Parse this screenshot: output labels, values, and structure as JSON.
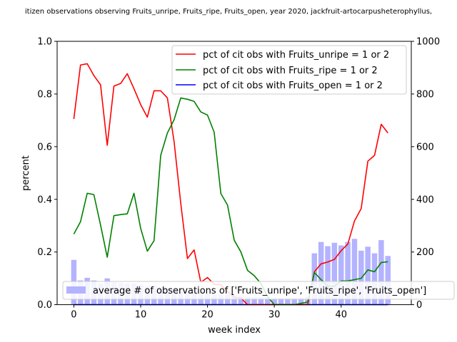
{
  "chart_data": {
    "type": "line",
    "title": "itizen observations observing Fruits_unripe, Fruits_ripe, Fruits_open, year 2020, jackfruit-artocarpusheterophyllus,",
    "xlabel": "week index",
    "ylabel": "percent",
    "xlim": [
      -2.5,
      50.5
    ],
    "ylim": [
      0,
      1.0
    ],
    "y2lim": [
      0,
      1000
    ],
    "xticks": [
      0,
      10,
      20,
      30,
      40
    ],
    "yticks": [
      0.0,
      0.2,
      0.4,
      0.6,
      0.8,
      1.0
    ],
    "yticks_labels": [
      "0.0",
      "0.2",
      "0.4",
      "0.6",
      "0.8",
      "1.0"
    ],
    "y2ticks": [
      0,
      200,
      400,
      600,
      800,
      1000
    ],
    "x": [
      0,
      1,
      2,
      3,
      4,
      5,
      6,
      7,
      8,
      9,
      10,
      11,
      12,
      13,
      14,
      15,
      16,
      17,
      18,
      19,
      20,
      21,
      22,
      23,
      24,
      25,
      26,
      27,
      28,
      29,
      30,
      31,
      32,
      33,
      34,
      35,
      36,
      37,
      38,
      39,
      40,
      41,
      42,
      43,
      44,
      45,
      46,
      47
    ],
    "series": [
      {
        "name": "pct of cit obs with Fruits_unripe = 1 or 2",
        "color": "#ff0000",
        "values": [
          0.705,
          0.91,
          0.915,
          0.87,
          0.835,
          0.605,
          0.83,
          0.84,
          0.877,
          0.82,
          0.76,
          0.712,
          0.812,
          0.812,
          0.785,
          0.62,
          0.385,
          0.175,
          0.208,
          0.085,
          0.103,
          0.078,
          0.075,
          0.05,
          0.028,
          0.025,
          0.0,
          0.0,
          0.0,
          0.0,
          0.0,
          0.0,
          0.0,
          0.0,
          0.0,
          0.0,
          0.125,
          0.155,
          0.162,
          0.172,
          0.205,
          0.23,
          0.318,
          0.365,
          0.545,
          0.567,
          0.685,
          0.652
        ]
      },
      {
        "name": "pct of cit obs with Fruits_ripe = 1 or 2",
        "color": "#008000",
        "values": [
          0.268,
          0.315,
          0.423,
          0.418,
          0.302,
          0.18,
          0.338,
          0.342,
          0.345,
          0.423,
          0.29,
          0.203,
          0.243,
          0.567,
          0.652,
          0.702,
          0.785,
          0.78,
          0.772,
          0.732,
          0.72,
          0.655,
          0.422,
          0.378,
          0.245,
          0.2,
          0.13,
          0.11,
          0.08,
          0.03,
          0.0,
          0.0,
          0.0,
          0.0,
          0.005,
          0.01,
          0.122,
          0.095,
          0.07,
          0.07,
          0.09,
          0.09,
          0.095,
          0.1,
          0.132,
          0.125,
          0.16,
          0.163
        ]
      },
      {
        "name": "pct of cit obs with Fruits_open = 1 or 2",
        "color": "#0000ff",
        "values": [
          0,
          0,
          0,
          0,
          0,
          0,
          0,
          0,
          0,
          0,
          0,
          0,
          0,
          0,
          0,
          0,
          0,
          0,
          0,
          0,
          0,
          0,
          0,
          0,
          0,
          0,
          0,
          0,
          0,
          0,
          0,
          0,
          0,
          0,
          0,
          0,
          0,
          0,
          0,
          0,
          0,
          0,
          0,
          0,
          0,
          0,
          0,
          0
        ]
      }
    ],
    "bars": {
      "name": "average # of observations of ['Fruits_unripe', 'Fruits_ripe', 'Fruits_open']",
      "color": "#b3b3ff",
      "values": [
        170,
        92,
        102,
        92,
        80,
        100,
        85,
        82,
        80,
        80,
        75,
        70,
        72,
        68,
        65,
        60,
        55,
        50,
        48,
        45,
        42,
        40,
        40,
        38,
        36,
        35,
        30,
        28,
        28,
        28,
        25,
        25,
        25,
        25,
        26,
        30,
        195,
        238,
        222,
        235,
        225,
        238,
        250,
        205,
        220,
        195,
        245,
        185
      ]
    },
    "legend": {
      "placement": "upper-right"
    },
    "legend2": {
      "placement": "lower-right"
    },
    "grid": false
  }
}
